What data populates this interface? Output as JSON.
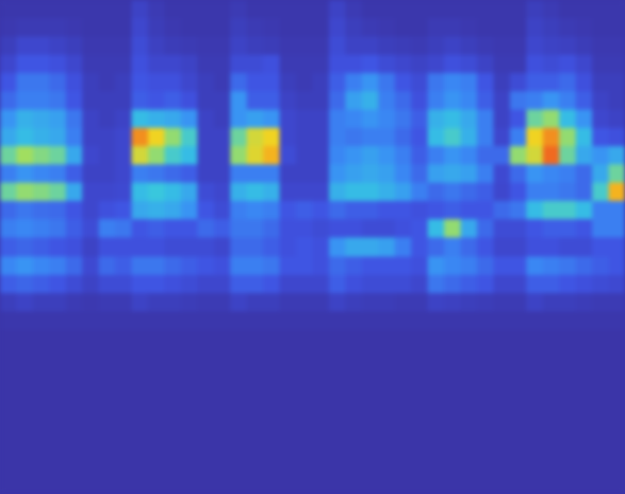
{
  "chart_data": {
    "type": "heatmap",
    "tick_labels": false,
    "values": [
      [
        0.06,
        0.06,
        0.06,
        0.06,
        0.06,
        0.06,
        0.06,
        0.06,
        0.12,
        0.08,
        0.06,
        0.06,
        0.06,
        0.06,
        0.08,
        0.06,
        0.06,
        0.06,
        0.06,
        0.06,
        0.12,
        0.08,
        0.06,
        0.06,
        0.06,
        0.06,
        0.06,
        0.06,
        0.06,
        0.06,
        0.06,
        0.06,
        0.1,
        0.08,
        0.06,
        0.06,
        0.06,
        0.06
      ],
      [
        0.07,
        0.08,
        0.08,
        0.08,
        0.07,
        0.06,
        0.06,
        0.06,
        0.14,
        0.09,
        0.07,
        0.06,
        0.06,
        0.06,
        0.1,
        0.08,
        0.07,
        0.06,
        0.06,
        0.06,
        0.14,
        0.1,
        0.08,
        0.07,
        0.06,
        0.06,
        0.08,
        0.08,
        0.07,
        0.06,
        0.06,
        0.06,
        0.12,
        0.1,
        0.08,
        0.07,
        0.06,
        0.06
      ],
      [
        0.1,
        0.14,
        0.14,
        0.12,
        0.1,
        0.07,
        0.07,
        0.07,
        0.16,
        0.11,
        0.09,
        0.08,
        0.07,
        0.07,
        0.12,
        0.1,
        0.09,
        0.07,
        0.07,
        0.07,
        0.16,
        0.12,
        0.12,
        0.1,
        0.09,
        0.08,
        0.1,
        0.12,
        0.1,
        0.08,
        0.07,
        0.07,
        0.14,
        0.12,
        0.11,
        0.09,
        0.07,
        0.07
      ],
      [
        0.14,
        0.2,
        0.2,
        0.18,
        0.14,
        0.08,
        0.08,
        0.08,
        0.18,
        0.14,
        0.14,
        0.12,
        0.08,
        0.08,
        0.16,
        0.16,
        0.18,
        0.08,
        0.08,
        0.08,
        0.18,
        0.18,
        0.2,
        0.16,
        0.14,
        0.12,
        0.14,
        0.18,
        0.16,
        0.12,
        0.08,
        0.08,
        0.18,
        0.16,
        0.18,
        0.14,
        0.08,
        0.08
      ],
      [
        0.2,
        0.28,
        0.28,
        0.25,
        0.18,
        0.1,
        0.08,
        0.1,
        0.2,
        0.18,
        0.18,
        0.14,
        0.1,
        0.08,
        0.25,
        0.2,
        0.2,
        0.1,
        0.08,
        0.1,
        0.22,
        0.3,
        0.35,
        0.28,
        0.2,
        0.16,
        0.28,
        0.32,
        0.3,
        0.2,
        0.1,
        0.16,
        0.22,
        0.22,
        0.25,
        0.18,
        0.1,
        0.1
      ],
      [
        0.25,
        0.3,
        0.3,
        0.28,
        0.2,
        0.1,
        0.1,
        0.1,
        0.22,
        0.2,
        0.22,
        0.18,
        0.1,
        0.1,
        0.35,
        0.22,
        0.22,
        0.12,
        0.1,
        0.1,
        0.25,
        0.38,
        0.42,
        0.3,
        0.25,
        0.18,
        0.3,
        0.35,
        0.32,
        0.22,
        0.12,
        0.28,
        0.3,
        0.35,
        0.3,
        0.22,
        0.12,
        0.1
      ],
      [
        0.35,
        0.42,
        0.4,
        0.38,
        0.28,
        0.12,
        0.1,
        0.12,
        0.45,
        0.42,
        0.4,
        0.35,
        0.12,
        0.1,
        0.35,
        0.38,
        0.35,
        0.14,
        0.12,
        0.12,
        0.3,
        0.32,
        0.35,
        0.32,
        0.28,
        0.22,
        0.42,
        0.45,
        0.4,
        0.3,
        0.12,
        0.2,
        0.55,
        0.6,
        0.45,
        0.35,
        0.14,
        0.12
      ],
      [
        0.4,
        0.45,
        0.42,
        0.4,
        0.3,
        0.12,
        0.12,
        0.14,
        0.85,
        0.75,
        0.6,
        0.5,
        0.12,
        0.12,
        0.55,
        0.7,
        0.75,
        0.14,
        0.12,
        0.12,
        0.3,
        0.28,
        0.3,
        0.3,
        0.25,
        0.2,
        0.45,
        0.5,
        0.42,
        0.3,
        0.14,
        0.3,
        0.75,
        0.85,
        0.6,
        0.45,
        0.2,
        0.18
      ],
      [
        0.55,
        0.62,
        0.58,
        0.55,
        0.4,
        0.14,
        0.12,
        0.14,
        0.7,
        0.6,
        0.5,
        0.45,
        0.12,
        0.12,
        0.6,
        0.72,
        0.8,
        0.16,
        0.12,
        0.12,
        0.32,
        0.35,
        0.38,
        0.35,
        0.3,
        0.22,
        0.3,
        0.35,
        0.32,
        0.25,
        0.25,
        0.6,
        0.7,
        0.9,
        0.55,
        0.4,
        0.35,
        0.4
      ],
      [
        0.3,
        0.35,
        0.32,
        0.3,
        0.22,
        0.12,
        0.12,
        0.14,
        0.3,
        0.28,
        0.25,
        0.22,
        0.12,
        0.12,
        0.3,
        0.3,
        0.3,
        0.12,
        0.12,
        0.12,
        0.35,
        0.38,
        0.4,
        0.38,
        0.32,
        0.25,
        0.38,
        0.4,
        0.38,
        0.3,
        0.15,
        0.25,
        0.35,
        0.32,
        0.3,
        0.25,
        0.4,
        0.55
      ],
      [
        0.55,
        0.6,
        0.58,
        0.55,
        0.4,
        0.14,
        0.14,
        0.15,
        0.45,
        0.48,
        0.45,
        0.4,
        0.16,
        0.14,
        0.42,
        0.45,
        0.42,
        0.14,
        0.14,
        0.14,
        0.42,
        0.45,
        0.45,
        0.42,
        0.38,
        0.3,
        0.25,
        0.28,
        0.25,
        0.22,
        0.14,
        0.2,
        0.3,
        0.3,
        0.28,
        0.25,
        0.5,
        0.8
      ],
      [
        0.25,
        0.28,
        0.26,
        0.25,
        0.2,
        0.14,
        0.18,
        0.2,
        0.4,
        0.42,
        0.4,
        0.35,
        0.2,
        0.16,
        0.3,
        0.32,
        0.3,
        0.2,
        0.22,
        0.2,
        0.25,
        0.22,
        0.22,
        0.2,
        0.2,
        0.18,
        0.2,
        0.22,
        0.2,
        0.2,
        0.25,
        0.28,
        0.45,
        0.5,
        0.5,
        0.45,
        0.3,
        0.3
      ],
      [
        0.3,
        0.32,
        0.3,
        0.28,
        0.22,
        0.16,
        0.3,
        0.28,
        0.2,
        0.22,
        0.2,
        0.2,
        0.25,
        0.22,
        0.28,
        0.28,
        0.25,
        0.18,
        0.18,
        0.16,
        0.18,
        0.18,
        0.16,
        0.16,
        0.18,
        0.2,
        0.45,
        0.6,
        0.4,
        0.25,
        0.16,
        0.16,
        0.2,
        0.22,
        0.22,
        0.2,
        0.3,
        0.3
      ],
      [
        0.22,
        0.24,
        0.22,
        0.2,
        0.18,
        0.12,
        0.18,
        0.18,
        0.18,
        0.18,
        0.16,
        0.16,
        0.16,
        0.14,
        0.25,
        0.25,
        0.22,
        0.18,
        0.2,
        0.18,
        0.35,
        0.4,
        0.4,
        0.38,
        0.3,
        0.2,
        0.25,
        0.3,
        0.25,
        0.2,
        0.14,
        0.14,
        0.18,
        0.18,
        0.16,
        0.16,
        0.2,
        0.2
      ],
      [
        0.32,
        0.35,
        0.32,
        0.3,
        0.25,
        0.15,
        0.25,
        0.22,
        0.28,
        0.28,
        0.25,
        0.22,
        0.2,
        0.18,
        0.3,
        0.3,
        0.28,
        0.2,
        0.2,
        0.18,
        0.25,
        0.22,
        0.2,
        0.2,
        0.2,
        0.18,
        0.35,
        0.32,
        0.3,
        0.25,
        0.2,
        0.2,
        0.32,
        0.3,
        0.28,
        0.25,
        0.22,
        0.2
      ],
      [
        0.22,
        0.24,
        0.22,
        0.2,
        0.16,
        0.12,
        0.16,
        0.16,
        0.2,
        0.2,
        0.18,
        0.16,
        0.14,
        0.14,
        0.22,
        0.22,
        0.2,
        0.14,
        0.14,
        0.14,
        0.22,
        0.18,
        0.16,
        0.16,
        0.16,
        0.14,
        0.28,
        0.25,
        0.22,
        0.2,
        0.14,
        0.14,
        0.22,
        0.22,
        0.2,
        0.18,
        0.16,
        0.15
      ],
      [
        0.1,
        0.12,
        0.1,
        0.1,
        0.08,
        0.07,
        0.08,
        0.08,
        0.12,
        0.1,
        0.1,
        0.09,
        0.08,
        0.08,
        0.12,
        0.1,
        0.1,
        0.08,
        0.08,
        0.08,
        0.12,
        0.1,
        0.09,
        0.09,
        0.08,
        0.08,
        0.12,
        0.11,
        0.1,
        0.09,
        0.08,
        0.08,
        0.12,
        0.1,
        0.1,
        0.09,
        0.08,
        0.08
      ],
      [
        0.06,
        0.06,
        0.06,
        0.06,
        0.06,
        0.06,
        0.06,
        0.06,
        0.06,
        0.06,
        0.06,
        0.06,
        0.06,
        0.06,
        0.06,
        0.06,
        0.06,
        0.06,
        0.06,
        0.06,
        0.06,
        0.06,
        0.06,
        0.06,
        0.06,
        0.06,
        0.06,
        0.06,
        0.06,
        0.06,
        0.06,
        0.06,
        0.06,
        0.06,
        0.06,
        0.06,
        0.06,
        0.06
      ],
      [
        0.05,
        0.05,
        0.05,
        0.05,
        0.05,
        0.05,
        0.05,
        0.05,
        0.05,
        0.05,
        0.05,
        0.05,
        0.05,
        0.05,
        0.05,
        0.05,
        0.05,
        0.05,
        0.05,
        0.05,
        0.05,
        0.05,
        0.05,
        0.05,
        0.05,
        0.05,
        0.05,
        0.05,
        0.05,
        0.05,
        0.05,
        0.05,
        0.05,
        0.05,
        0.05,
        0.05,
        0.05,
        0.05
      ],
      [
        0.05,
        0.05,
        0.05,
        0.05,
        0.05,
        0.05,
        0.05,
        0.05,
        0.05,
        0.05,
        0.05,
        0.05,
        0.05,
        0.05,
        0.05,
        0.05,
        0.05,
        0.05,
        0.05,
        0.05,
        0.05,
        0.05,
        0.05,
        0.05,
        0.05,
        0.05,
        0.05,
        0.05,
        0.05,
        0.05,
        0.05,
        0.05,
        0.05,
        0.05,
        0.05,
        0.05,
        0.05,
        0.05
      ],
      [
        0.05,
        0.05,
        0.05,
        0.05,
        0.05,
        0.05,
        0.05,
        0.05,
        0.05,
        0.05,
        0.05,
        0.05,
        0.05,
        0.05,
        0.05,
        0.05,
        0.05,
        0.05,
        0.05,
        0.05,
        0.05,
        0.05,
        0.05,
        0.05,
        0.05,
        0.05,
        0.05,
        0.05,
        0.05,
        0.05,
        0.05,
        0.05,
        0.05,
        0.05,
        0.05,
        0.05,
        0.05,
        0.05
      ],
      [
        0.05,
        0.05,
        0.05,
        0.05,
        0.05,
        0.05,
        0.05,
        0.05,
        0.05,
        0.05,
        0.05,
        0.05,
        0.05,
        0.05,
        0.05,
        0.05,
        0.05,
        0.05,
        0.05,
        0.05,
        0.05,
        0.05,
        0.05,
        0.05,
        0.05,
        0.05,
        0.05,
        0.05,
        0.05,
        0.05,
        0.05,
        0.05,
        0.05,
        0.05,
        0.05,
        0.05,
        0.05,
        0.05
      ],
      [
        0.05,
        0.05,
        0.05,
        0.05,
        0.05,
        0.05,
        0.05,
        0.05,
        0.05,
        0.05,
        0.05,
        0.05,
        0.05,
        0.05,
        0.05,
        0.05,
        0.05,
        0.05,
        0.05,
        0.05,
        0.05,
        0.05,
        0.05,
        0.05,
        0.05,
        0.05,
        0.05,
        0.05,
        0.05,
        0.05,
        0.05,
        0.05,
        0.05,
        0.05,
        0.05,
        0.05,
        0.05,
        0.05
      ],
      [
        0.05,
        0.05,
        0.05,
        0.05,
        0.05,
        0.05,
        0.05,
        0.05,
        0.05,
        0.05,
        0.05,
        0.05,
        0.05,
        0.05,
        0.05,
        0.05,
        0.05,
        0.05,
        0.05,
        0.05,
        0.05,
        0.05,
        0.05,
        0.05,
        0.05,
        0.05,
        0.05,
        0.05,
        0.05,
        0.05,
        0.05,
        0.05,
        0.05,
        0.05,
        0.05,
        0.05,
        0.05,
        0.05
      ],
      [
        0.05,
        0.05,
        0.05,
        0.05,
        0.05,
        0.05,
        0.05,
        0.05,
        0.05,
        0.05,
        0.05,
        0.05,
        0.05,
        0.05,
        0.05,
        0.05,
        0.05,
        0.05,
        0.05,
        0.05,
        0.05,
        0.05,
        0.05,
        0.05,
        0.05,
        0.05,
        0.05,
        0.05,
        0.05,
        0.05,
        0.05,
        0.05,
        0.05,
        0.05,
        0.05,
        0.05,
        0.05,
        0.05
      ],
      [
        0.05,
        0.05,
        0.05,
        0.05,
        0.05,
        0.05,
        0.05,
        0.05,
        0.05,
        0.05,
        0.05,
        0.05,
        0.05,
        0.05,
        0.05,
        0.05,
        0.05,
        0.05,
        0.05,
        0.05,
        0.05,
        0.05,
        0.05,
        0.05,
        0.05,
        0.05,
        0.05,
        0.05,
        0.05,
        0.05,
        0.05,
        0.05,
        0.05,
        0.05,
        0.05,
        0.05,
        0.05,
        0.05
      ],
      [
        0.05,
        0.05,
        0.05,
        0.05,
        0.05,
        0.05,
        0.05,
        0.05,
        0.05,
        0.05,
        0.05,
        0.05,
        0.05,
        0.05,
        0.05,
        0.05,
        0.05,
        0.05,
        0.05,
        0.05,
        0.05,
        0.05,
        0.05,
        0.05,
        0.05,
        0.05,
        0.05,
        0.05,
        0.05,
        0.05,
        0.05,
        0.05,
        0.05,
        0.05,
        0.05,
        0.05,
        0.05,
        0.05
      ]
    ]
  }
}
